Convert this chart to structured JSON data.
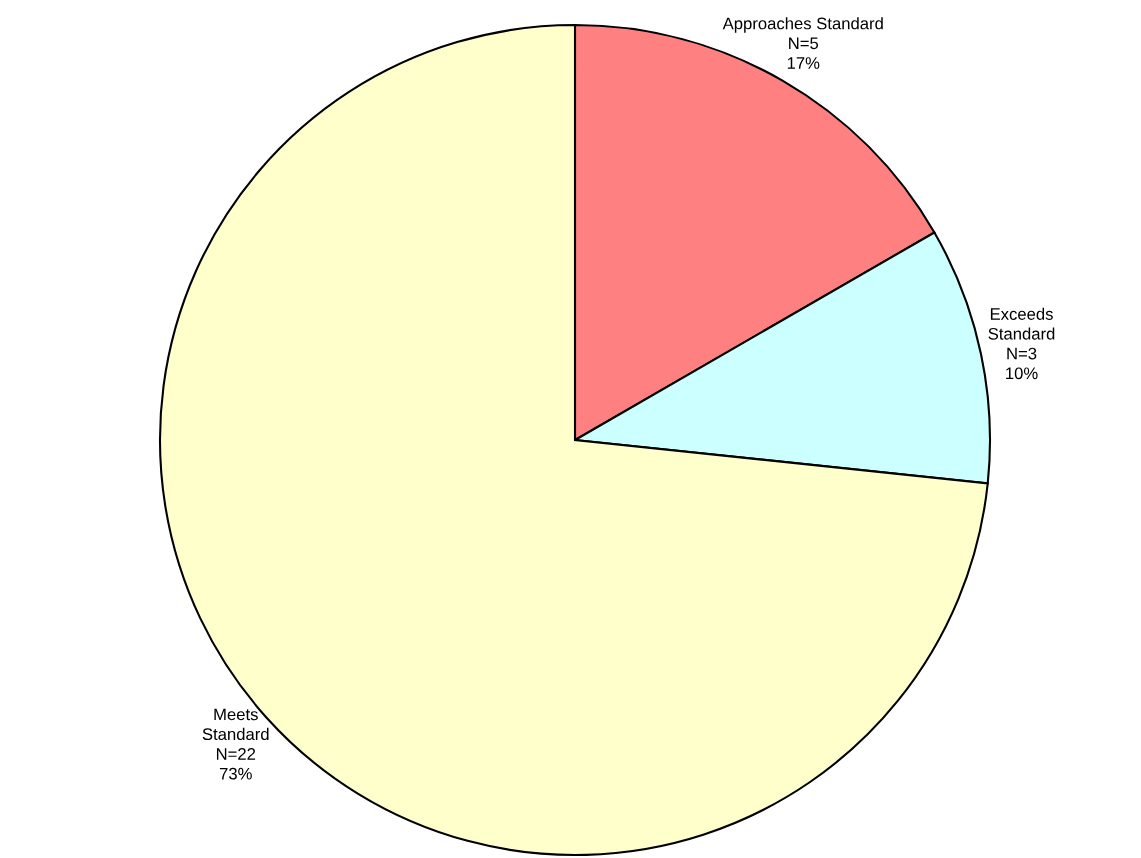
{
  "chart_data": {
    "type": "pie",
    "categories": [
      "Approaches Standard",
      "Exceeds\nStandard",
      "Meets\nStandard"
    ],
    "values": [
      5,
      3,
      22
    ],
    "value_labels": [
      "N=5\n17%",
      "N=3\n10%",
      "N=22\n73%"
    ],
    "colors": [
      "#ff8080",
      "#ccffff",
      "#ffffcc"
    ],
    "legend": false
  }
}
